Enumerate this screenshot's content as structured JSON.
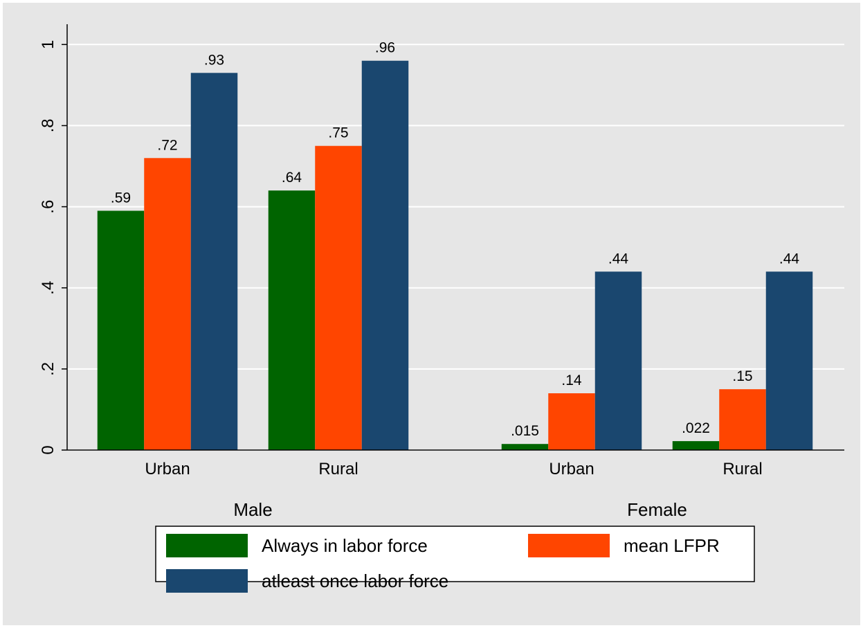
{
  "chart_data": {
    "type": "bar",
    "groups": [
      {
        "name": "Male",
        "categories": [
          "Urban",
          "Rural"
        ]
      },
      {
        "name": "Female",
        "categories": [
          "Urban",
          "Rural"
        ]
      }
    ],
    "series": [
      {
        "name": "Always in labor force",
        "color": "#006400",
        "values": [
          0.59,
          0.64,
          0.015,
          0.022
        ],
        "value_labels": [
          ".59",
          ".64",
          ".015",
          ".022"
        ]
      },
      {
        "name": "mean LFPR",
        "color": "#ff4500",
        "values": [
          0.72,
          0.75,
          0.14,
          0.15
        ],
        "value_labels": [
          ".72",
          ".75",
          ".14",
          ".15"
        ]
      },
      {
        "name": "atleast once labor force",
        "color": "#1a476f",
        "values": [
          0.93,
          0.96,
          0.44,
          0.44
        ],
        "value_labels": [
          ".93",
          ".96",
          ".44",
          ".44"
        ]
      }
    ],
    "ylim": [
      0,
      1.05
    ],
    "yticks": [
      0,
      {
        "value": 0.2,
        "label": ".2"
      },
      {
        "value": 0.4,
        "label": ".4"
      },
      {
        "value": 0.6,
        "label": ".6"
      },
      {
        "value": 0.8,
        "label": ".8"
      },
      1
    ],
    "grid": true,
    "legend": "bottom"
  }
}
